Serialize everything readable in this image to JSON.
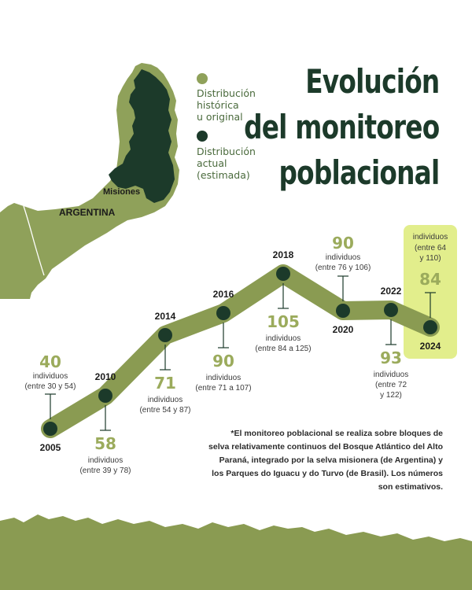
{
  "title": [
    "Evolución",
    "del monitoreo",
    "poblacional"
  ],
  "map": {
    "country_label": "ARGENTINA",
    "region_label": "Misiones"
  },
  "legend": [
    {
      "label": "Distribución\nhistórica\nu original",
      "color": "#8fa15a"
    },
    {
      "label": "Distribución\nactual\n(estimada)",
      "color": "#1c3a2a"
    }
  ],
  "colors": {
    "line_band": "#8a9b52",
    "point": "#1c3a2a",
    "value_text": "#9bab5c",
    "highlight_bg": "#e2ee8c",
    "ground": "#8a9b52"
  },
  "chart_data": {
    "type": "line",
    "series": [
      {
        "points": [
          {
            "year": "2005",
            "value": "40",
            "unit": "individuos",
            "range": "(entre 30 y 54)"
          },
          {
            "year": "2010",
            "value": "58",
            "unit": "individuos",
            "range": "(entre 39 y 78)"
          },
          {
            "year": "2014",
            "value": "71",
            "unit": "individuos",
            "range": "(entre 54 y 87)"
          },
          {
            "year": "2016",
            "value": "90",
            "unit": "individuos",
            "range": "(entre 71 a 107)"
          },
          {
            "year": "2018",
            "value": "105",
            "unit": "individuos",
            "range": "(entre 84 a 125)"
          },
          {
            "year": "2020",
            "value": "90",
            "unit": "individuos",
            "range": "(entre 76 y 106)"
          },
          {
            "year": "2022",
            "value": "93",
            "unit": "individuos",
            "range": "(entre 72\ny 122)"
          },
          {
            "year": "2024",
            "value": "84",
            "unit": "individuos",
            "range": "(entre 64\ny 110)",
            "highlight": true
          }
        ]
      }
    ]
  },
  "footnote": "*El monitoreo poblacional se realiza sobre bloques de selva relativamente continuos del Bosque Atlántico del Alto Paraná, integrado por la selva misionera (de Argentina) y los Parques do Iguacu y do Turvo (de Brasil). Los números son estimativos."
}
